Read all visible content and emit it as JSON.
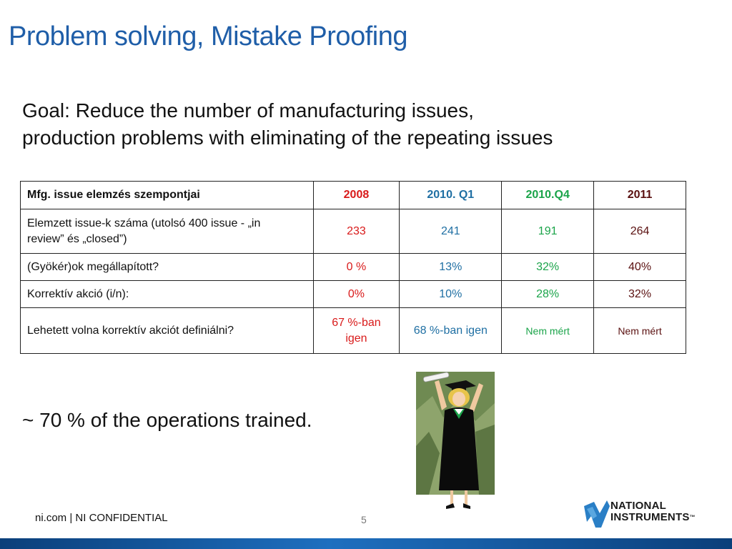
{
  "slide": {
    "title": "Problem solving, Mistake Proofing",
    "goal_line1": "Goal:  Reduce the number of manufacturing issues,",
    "goal_line2": "production problems with eliminating of the repeating issues",
    "trained_text": "~ 70 % of the operations trained."
  },
  "table": {
    "headers": [
      "Mfg. issue elemzés szempontjai",
      "2008",
      "2010. Q1",
      "2010.Q4",
      "2011"
    ],
    "rows": [
      {
        "label_line1": "Elemzett issue-k száma (utolsó 400 issue - „in",
        "label_line2": "review” és „closed”)",
        "values": [
          "233",
          "241",
          "191",
          "264"
        ]
      },
      {
        "label": "(Gyökér)ok megállapított?",
        "values": [
          "0 %",
          "13%",
          "32%",
          "40%"
        ]
      },
      {
        "label": "Korrektív akció (i/n):",
        "values": [
          "0%",
          "10%",
          "28%",
          "32%"
        ]
      },
      {
        "label": "Lehetett volna korrektív akciót definiálni?",
        "value_2008_line1": "67 %-ban",
        "value_2008_line2": "igen",
        "values": [
          "68 %-ban igen",
          "Nem mért",
          "Nem mért"
        ]
      }
    ],
    "colors": {
      "2008": "#d91a1a",
      "2010_q1": "#1f6fa3",
      "2010_q4": "#1ba44a",
      "2011": "#5a1010"
    }
  },
  "footer": {
    "left_text": "ni.com  |  NI CONFIDENTIAL",
    "page_number": "5",
    "logo_line1": "NATIONAL",
    "logo_line2": "INSTRUMENTS",
    "logo_tm": "™"
  },
  "theme": {
    "title_color": "#1f5ea8",
    "bar_color": "#1e6fbf"
  },
  "icons": {
    "clipart": "graduate-celebrating-icon",
    "logo": "national-instruments-logo-icon"
  }
}
